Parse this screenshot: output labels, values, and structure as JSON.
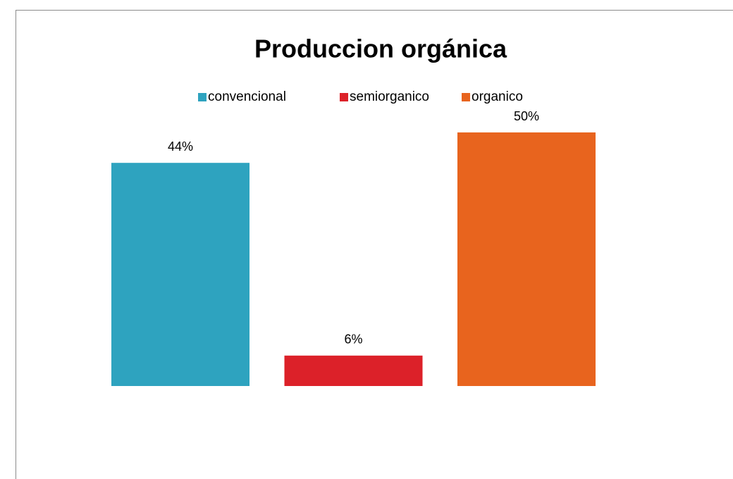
{
  "chart_data": {
    "type": "bar",
    "title": "Produccion orgánica",
    "categories": [
      null
    ],
    "series": [
      {
        "name": "convencional",
        "color": "#2ea3bf",
        "values": [
          44
        ],
        "value_labels": [
          "44%"
        ]
      },
      {
        "name": "semiorganico",
        "color": "#dc2129",
        "values": [
          6
        ],
        "value_labels": [
          "6%"
        ]
      },
      {
        "name": "organico",
        "color": "#e8641e",
        "values": [
          50
        ],
        "value_labels": [
          "50%"
        ]
      }
    ],
    "legend": "top"
  }
}
